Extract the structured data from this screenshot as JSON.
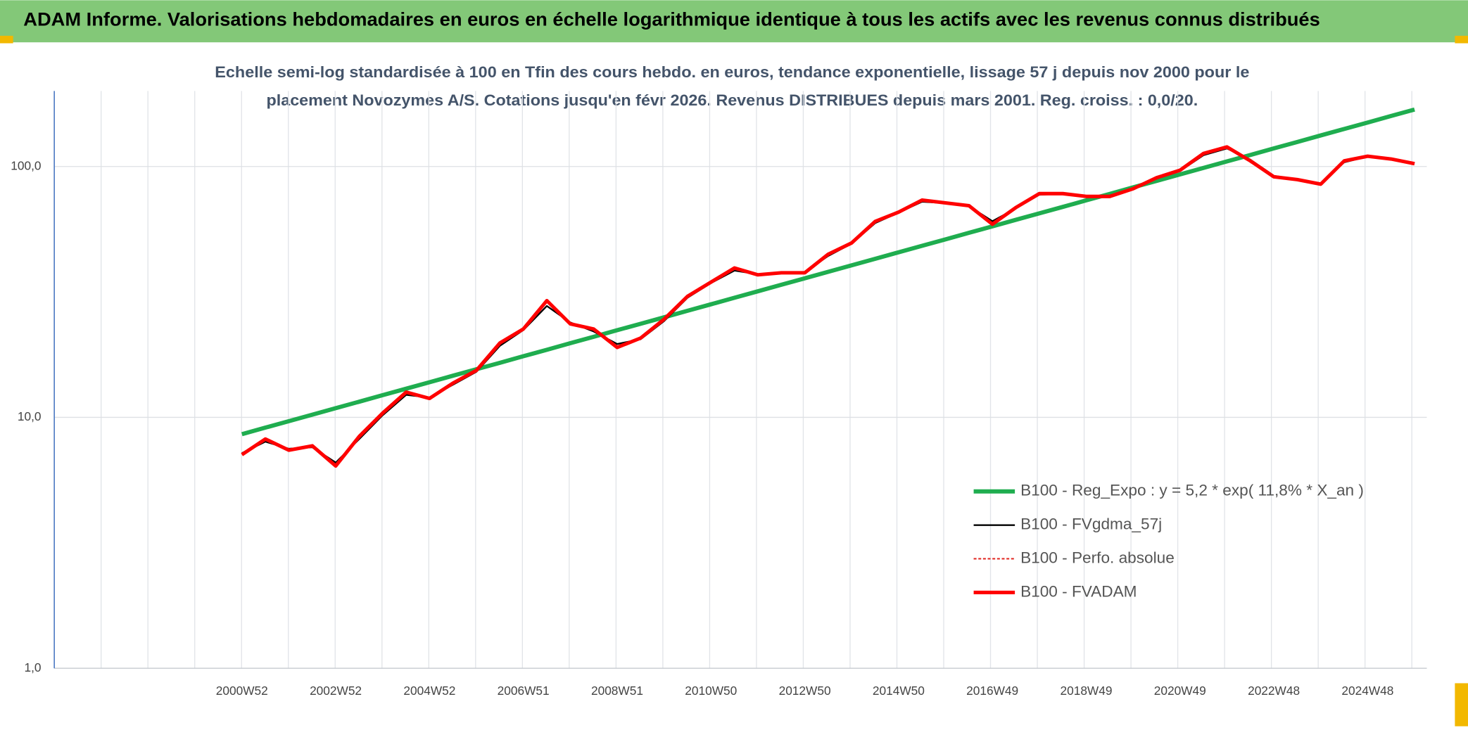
{
  "chart_data": {
    "type": "line",
    "title": "ADAM Informe. Valorisations hebdomadaires en euros en échelle logarithmique identique à tous les actifs avec les revenus connus distribués",
    "subtitle": [
      "Echelle semi-log standardisée à 100 en Tfin des cours hebdo. en euros, tendance exponentielle, lissage 57 j depuis nov 2000 pour le",
      "placement Novozymes A/S. Cotations jusqu'en févr 2026. Revenus DISTRIBUES depuis mars 2001. Reg. croiss. : 0,0/20."
    ],
    "log_scale": true,
    "grid": true,
    "legend_position": "lower right",
    "ylim": [
      1,
      200
    ],
    "yticks": [
      {
        "value": 1,
        "label": "1,0"
      },
      {
        "value": 10,
        "label": "10,0"
      },
      {
        "value": 100,
        "label": "100,0"
      }
    ],
    "categories": [
      null,
      null,
      null,
      null,
      null,
      null,
      null,
      null,
      "2000W52",
      null,
      null,
      null,
      "2002W52",
      null,
      null,
      null,
      "2004W52",
      null,
      null,
      null,
      "2006W51",
      null,
      null,
      null,
      "2008W51",
      null,
      null,
      null,
      "2010W50",
      null,
      null,
      null,
      "2012W50",
      null,
      null,
      null,
      "2014W50",
      null,
      null,
      null,
      "2016W49",
      null,
      null,
      null,
      "2018W49",
      null,
      null,
      null,
      "2020W49",
      null,
      null,
      null,
      "2022W48",
      null,
      null,
      null,
      "2024W48",
      null,
      null
    ],
    "series": [
      {
        "name": "B100 - Reg_Expo : y = 5,2 * exp( 11,8% *  X_an )",
        "color": "#1fad4f",
        "width": 4.5,
        "values": [
          null,
          null,
          null,
          null,
          null,
          null,
          null,
          null,
          8.57,
          9.1,
          9.66,
          10.25,
          10.88,
          11.55,
          12.26,
          13.01,
          13.81,
          14.66,
          15.56,
          16.51,
          17.53,
          18.6,
          19.75,
          20.96,
          22.25,
          23.61,
          25.06,
          26.6,
          28.24,
          29.97,
          31.81,
          33.77,
          35.84,
          38.04,
          40.38,
          42.86,
          45.49,
          48.28,
          51.25,
          54.39,
          57.73,
          61.28,
          65.04,
          69.04,
          73.28,
          77.77,
          82.55,
          87.62,
          93.0,
          98.71,
          104.77,
          111.2,
          118.03,
          125.28,
          132.97,
          141.13,
          149.8,
          159.0,
          168.76
        ]
      },
      {
        "name": "B100 - FVgdma_57j",
        "color": "#000000",
        "width": 1.8,
        "values": [
          null,
          null,
          null,
          null,
          null,
          null,
          null,
          null,
          7.2,
          8.0,
          7.5,
          7.6,
          6.6,
          8.2,
          10.2,
          12.3,
          12.0,
          13.5,
          15.2,
          19.3,
          22.3,
          27.8,
          23.9,
          22.0,
          19.6,
          20.5,
          24.2,
          30.0,
          34.3,
          38.5,
          37.2,
          37.5,
          37.9,
          44.0,
          49.3,
          59.5,
          65.5,
          72.4,
          71.5,
          69.5,
          60.5,
          68.0,
          77.2,
          78.0,
          76.2,
          76.3,
          81.0,
          89.5,
          96.0,
          111.0,
          118.0,
          106.5,
          91.8,
          88.8,
          85.8,
          104.0,
          109.5,
          107.0,
          102.8
        ]
      },
      {
        "name": "B100 - Perfo. absolue",
        "color": "#e0201b",
        "width": 1.5,
        "dash": "3 2",
        "values": [
          null,
          null,
          null,
          null,
          null,
          null,
          null,
          null,
          7.1,
          8.2,
          7.4,
          7.7,
          6.4,
          8.4,
          10.4,
          12.6,
          11.9,
          13.7,
          15.4,
          19.8,
          22.5,
          29.2,
          23.6,
          22.5,
          19.0,
          20.7,
          24.6,
          30.4,
          34.6,
          39.4,
          37.0,
          37.7,
          37.7,
          44.7,
          49.6,
          60.4,
          65.8,
          73.5,
          71.6,
          69.8,
          58.9,
          68.6,
          78.0,
          78.0,
          76.0,
          76.0,
          81.5,
          90.2,
          96.6,
          112.7,
          119.7,
          105.3,
          91.0,
          88.7,
          85.0,
          105.3,
          109.9,
          107.1,
          102.6
        ]
      },
      {
        "name": "B100 - FVADAM",
        "color": "#ff0000",
        "width": 3.8,
        "values": [
          null,
          null,
          null,
          null,
          null,
          null,
          null,
          null,
          7.1,
          8.2,
          7.4,
          7.7,
          6.4,
          8.4,
          10.4,
          12.6,
          11.9,
          13.7,
          15.4,
          19.8,
          22.5,
          29.2,
          23.6,
          22.5,
          19.0,
          20.7,
          24.6,
          30.4,
          34.6,
          39.4,
          37.0,
          37.7,
          37.7,
          44.7,
          49.6,
          60.4,
          65.8,
          73.5,
          71.6,
          69.8,
          58.9,
          68.6,
          78.0,
          78.0,
          76.0,
          76.0,
          81.5,
          90.2,
          96.6,
          112.7,
          119.7,
          105.3,
          91.0,
          88.7,
          85.0,
          105.3,
          109.9,
          107.1,
          102.6
        ]
      }
    ]
  }
}
